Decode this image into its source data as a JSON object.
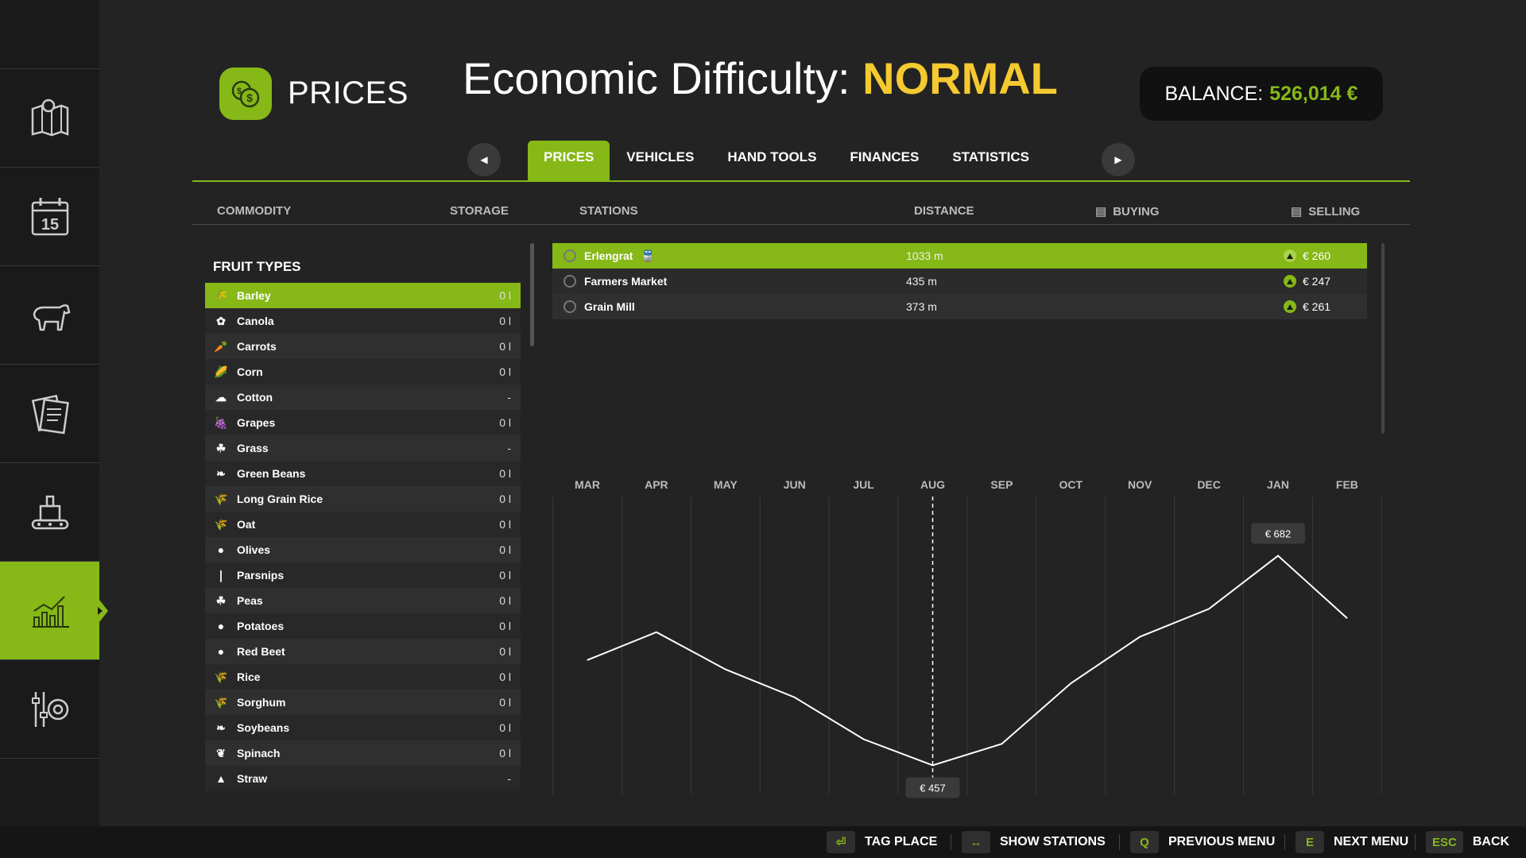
{
  "header": {
    "page_title": "PRICES",
    "difficulty_label": "Economic Difficulty:",
    "difficulty_value": "NORMAL",
    "balance_label": "BALANCE:",
    "balance_value": "526,014 €"
  },
  "sidebar": {
    "items": [
      {
        "icon": "map-icon"
      },
      {
        "icon": "calendar-icon",
        "text": "15"
      },
      {
        "icon": "animals-icon"
      },
      {
        "icon": "contracts-icon"
      },
      {
        "icon": "production-icon"
      },
      {
        "icon": "prices-chart-icon",
        "active": true
      },
      {
        "icon": "settings-icon"
      }
    ]
  },
  "tabs": [
    "PRICES",
    "VEHICLES",
    "HAND TOOLS",
    "FINANCES",
    "STATISTICS"
  ],
  "active_tab": "PRICES",
  "columns": {
    "commodity": "COMMODITY",
    "storage": "STORAGE",
    "stations": "STATIONS",
    "distance": "DISTANCE",
    "buying": "BUYING",
    "selling": "SELLING"
  },
  "fruit_types_title": "FRUIT TYPES",
  "commodities": [
    {
      "name": "Barley",
      "storage": "0 l",
      "icon": "🌾",
      "active": true
    },
    {
      "name": "Canola",
      "storage": "0 l",
      "icon": "✿"
    },
    {
      "name": "Carrots",
      "storage": "0 l",
      "icon": "🥕"
    },
    {
      "name": "Corn",
      "storage": "0 l",
      "icon": "🌽"
    },
    {
      "name": "Cotton",
      "storage": "-",
      "icon": "☁"
    },
    {
      "name": "Grapes",
      "storage": "0 l",
      "icon": "🍇"
    },
    {
      "name": "Grass",
      "storage": "-",
      "icon": "☘"
    },
    {
      "name": "Green Beans",
      "storage": "0 l",
      "icon": "❧"
    },
    {
      "name": "Long Grain Rice",
      "storage": "0 l",
      "icon": "🌾"
    },
    {
      "name": "Oat",
      "storage": "0 l",
      "icon": "🌾"
    },
    {
      "name": "Olives",
      "storage": "0 l",
      "icon": "●"
    },
    {
      "name": "Parsnips",
      "storage": "0 l",
      "icon": "❘"
    },
    {
      "name": "Peas",
      "storage": "0 l",
      "icon": "☘"
    },
    {
      "name": "Potatoes",
      "storage": "0 l",
      "icon": "●"
    },
    {
      "name": "Red Beet",
      "storage": "0 l",
      "icon": "●"
    },
    {
      "name": "Rice",
      "storage": "0 l",
      "icon": "🌾"
    },
    {
      "name": "Sorghum",
      "storage": "0 l",
      "icon": "🌾"
    },
    {
      "name": "Soybeans",
      "storage": "0 l",
      "icon": "❧"
    },
    {
      "name": "Spinach",
      "storage": "0 l",
      "icon": "❦"
    },
    {
      "name": "Straw",
      "storage": "-",
      "icon": "▲"
    }
  ],
  "stations": [
    {
      "name": "Erlengrat",
      "distance": "1033 m",
      "selling": "€ 260",
      "active": true,
      "train": true
    },
    {
      "name": "Farmers Market",
      "distance": "435 m",
      "selling": "€ 247"
    },
    {
      "name": "Grain Mill",
      "distance": "373 m",
      "selling": "€ 261"
    }
  ],
  "chart_data": {
    "type": "line",
    "categories": [
      "MAR",
      "APR",
      "MAY",
      "JUN",
      "JUL",
      "AUG",
      "SEP",
      "OCT",
      "NOV",
      "DEC",
      "JAN",
      "FEB"
    ],
    "series": [
      {
        "values": [
          570,
          600,
          560,
          530,
          485,
          457,
          480,
          545,
          595,
          625,
          682,
          615
        ]
      }
    ],
    "ylim": [
      430,
      720
    ],
    "current_month": "AUG",
    "annotations": [
      {
        "month": "AUG",
        "label": "€ 457"
      },
      {
        "month": "JAN",
        "label": "€ 682"
      }
    ]
  },
  "bottom_hints": [
    {
      "key": "⏎",
      "label": "TAG PLACE"
    },
    {
      "key": "↔",
      "label": "SHOW STATIONS"
    },
    {
      "key": "Q",
      "label": "PREVIOUS MENU"
    },
    {
      "key": "E",
      "label": "NEXT MENU"
    },
    {
      "key": "ESC",
      "label": "BACK"
    }
  ],
  "colors": {
    "accent": "#86b817",
    "difficulty": "#f5c930"
  }
}
